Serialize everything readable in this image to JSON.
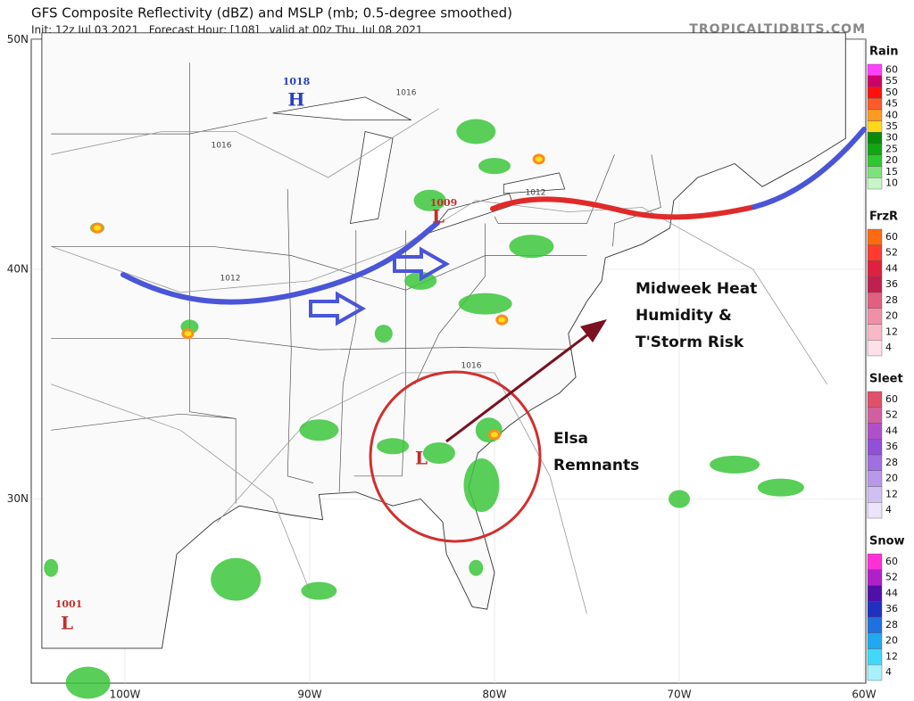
{
  "header": {
    "title": "GFS Composite Reflectivity (dBZ) and MSLP (mb; 0.5-degree smoothed)",
    "subtitle": "Init: 12z Jul 03 2021   Forecast Hour: [108]   valid at 00z Thu, Jul 08 2021",
    "site": "TROPICALTIDBITS.COM"
  },
  "axes": {
    "lat_labels": [
      "50N",
      "40N",
      "30N"
    ],
    "lon_labels": [
      "100W",
      "90W",
      "80W",
      "70W",
      "60W"
    ]
  },
  "pressure_centers": [
    {
      "value": "1018",
      "letter": "H",
      "color": "#2a3fbf"
    },
    {
      "value": "1009",
      "letter": "L",
      "color": "#c0302a"
    },
    {
      "value": "1001",
      "letter": "L",
      "color": "#c0302a"
    },
    {
      "letter": "L",
      "color": "#c0302a"
    }
  ],
  "isobar_labels": [
    "1016",
    "1016",
    "1012",
    "1012",
    "1016"
  ],
  "annotations": {
    "heat": [
      "Midweek Heat",
      "Humidity &",
      "T'Storm Risk"
    ],
    "elsa": [
      "Elsa",
      "Remnants"
    ]
  },
  "legend": [
    {
      "title": "Rain",
      "ticks": [
        60,
        55,
        50,
        45,
        40,
        35,
        30,
        25,
        20,
        15,
        10
      ],
      "colors": [
        "#ff40ff",
        "#d0006a",
        "#ff1010",
        "#ff5a2a",
        "#ff9a20",
        "#ffd81a",
        "#0a8a0a",
        "#10a810",
        "#30c830",
        "#7ee07e",
        "#c8f5c8"
      ]
    },
    {
      "title": "FrzR",
      "ticks": [
        60,
        52,
        44,
        36,
        28,
        20,
        12,
        4
      ],
      "colors": [
        "#ff6a10",
        "#ff3a30",
        "#e02040",
        "#c02050",
        "#e06080",
        "#f090a8",
        "#f8b8c8",
        "#fde0e8"
      ]
    },
    {
      "title": "Sleet",
      "ticks": [
        60,
        52,
        44,
        36,
        28,
        20,
        12,
        4
      ],
      "colors": [
        "#e0506a",
        "#d060a0",
        "#b050c8",
        "#9050d8",
        "#a070e0",
        "#b898ea",
        "#d0c0f2",
        "#ece4fa"
      ]
    },
    {
      "title": "Snow",
      "ticks": [
        60,
        52,
        44,
        36,
        28,
        20,
        12,
        4
      ],
      "colors": [
        "#ff30d8",
        "#b020c8",
        "#5010a8",
        "#2030c0",
        "#2070e0",
        "#20a8f0",
        "#40d8f8",
        "#a8f0fc"
      ]
    }
  ]
}
